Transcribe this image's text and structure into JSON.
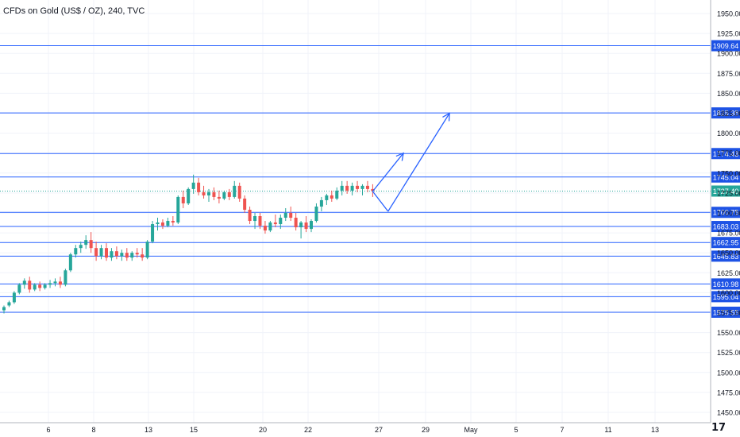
{
  "header": {
    "title": "CFDs on Gold (US$ / OZ), 240, TVC"
  },
  "brand": {
    "text": "17"
  },
  "colors": {
    "up": "#26a69a",
    "down": "#ef5350",
    "level_line": "#2962ff",
    "level_label_bg": "#1e53e5",
    "last_price_bg": "#26a69a",
    "grid": "#f0f3fa",
    "axis_text": "#131722"
  },
  "chart_data": {
    "type": "candlestick",
    "title": "CFDs on Gold (US$ / OZ), 240, TVC",
    "y_axis": {
      "range": [
        1440,
        1965
      ],
      "ticks": [
        1950,
        1925,
        1900,
        1875,
        1850,
        1825,
        1800,
        1775,
        1750,
        1725,
        1700,
        1675,
        1650,
        1625,
        1600,
        1575,
        1550,
        1525,
        1500,
        1475,
        1450
      ]
    },
    "x_axis": {
      "ticks": [
        "6",
        "8",
        "13",
        "15",
        "20",
        "22",
        "27",
        "29",
        "May",
        "5",
        "7",
        "11",
        "13"
      ]
    },
    "price_levels": [
      "1909.64",
      "1825.38",
      "1774.43",
      "1745.04",
      "1700.75",
      "1683.03",
      "1662.95",
      "1645.83",
      "1610.98",
      "1595.04",
      "1575.55"
    ],
    "last_price": "1727.40",
    "candles": [
      [
        1578,
        1584,
        1574,
        1582
      ],
      [
        1584,
        1590,
        1582,
        1588
      ],
      [
        1588,
        1602,
        1586,
        1600
      ],
      [
        1600,
        1612,
        1598,
        1610
      ],
      [
        1610,
        1618,
        1605,
        1615
      ],
      [
        1615,
        1620,
        1600,
        1604
      ],
      [
        1604,
        1612,
        1602,
        1610
      ],
      [
        1610,
        1614,
        1602,
        1606
      ],
      [
        1606,
        1612,
        1604,
        1610
      ],
      [
        1610,
        1616,
        1606,
        1612
      ],
      [
        1612,
        1618,
        1608,
        1614
      ],
      [
        1614,
        1620,
        1606,
        1610
      ],
      [
        1610,
        1630,
        1608,
        1628
      ],
      [
        1628,
        1650,
        1626,
        1648
      ],
      [
        1648,
        1660,
        1644,
        1656
      ],
      [
        1656,
        1664,
        1650,
        1660
      ],
      [
        1660,
        1672,
        1655,
        1666
      ],
      [
        1666,
        1676,
        1650,
        1656
      ],
      [
        1656,
        1664,
        1640,
        1646
      ],
      [
        1646,
        1660,
        1642,
        1656
      ],
      [
        1656,
        1662,
        1640,
        1644
      ],
      [
        1644,
        1656,
        1640,
        1652
      ],
      [
        1652,
        1658,
        1642,
        1646
      ],
      [
        1646,
        1654,
        1640,
        1650
      ],
      [
        1650,
        1656,
        1640,
        1644
      ],
      [
        1644,
        1652,
        1640,
        1650
      ],
      [
        1650,
        1656,
        1644,
        1648
      ],
      [
        1648,
        1656,
        1640,
        1644
      ],
      [
        1644,
        1666,
        1642,
        1664
      ],
      [
        1664,
        1690,
        1662,
        1686
      ],
      [
        1686,
        1694,
        1678,
        1688
      ],
      [
        1688,
        1692,
        1680,
        1684
      ],
      [
        1684,
        1694,
        1682,
        1690
      ],
      [
        1690,
        1696,
        1684,
        1688
      ],
      [
        1688,
        1722,
        1686,
        1720
      ],
      [
        1720,
        1728,
        1706,
        1712
      ],
      [
        1712,
        1732,
        1710,
        1730
      ],
      [
        1730,
        1748,
        1724,
        1738
      ],
      [
        1738,
        1744,
        1722,
        1726
      ],
      [
        1726,
        1734,
        1718,
        1722
      ],
      [
        1722,
        1730,
        1714,
        1726
      ],
      [
        1726,
        1732,
        1716,
        1720
      ],
      [
        1720,
        1728,
        1712,
        1718
      ],
      [
        1718,
        1728,
        1716,
        1726
      ],
      [
        1726,
        1730,
        1716,
        1720
      ],
      [
        1720,
        1740,
        1718,
        1734
      ],
      [
        1734,
        1738,
        1714,
        1718
      ],
      [
        1718,
        1722,
        1700,
        1704
      ],
      [
        1704,
        1708,
        1686,
        1690
      ],
      [
        1690,
        1700,
        1680,
        1696
      ],
      [
        1696,
        1700,
        1680,
        1684
      ],
      [
        1684,
        1690,
        1674,
        1678
      ],
      [
        1678,
        1690,
        1676,
        1688
      ],
      [
        1688,
        1698,
        1682,
        1686
      ],
      [
        1686,
        1698,
        1680,
        1694
      ],
      [
        1694,
        1706,
        1690,
        1700
      ],
      [
        1700,
        1708,
        1690,
        1694
      ],
      [
        1694,
        1700,
        1678,
        1682
      ],
      [
        1682,
        1690,
        1668,
        1688
      ],
      [
        1688,
        1696,
        1676,
        1680
      ],
      [
        1680,
        1692,
        1676,
        1690
      ],
      [
        1690,
        1712,
        1688,
        1708
      ],
      [
        1708,
        1720,
        1702,
        1716
      ],
      [
        1716,
        1724,
        1710,
        1722
      ],
      [
        1722,
        1728,
        1714,
        1718
      ],
      [
        1718,
        1732,
        1716,
        1728
      ],
      [
        1728,
        1740,
        1722,
        1734
      ],
      [
        1734,
        1740,
        1724,
        1728
      ],
      [
        1728,
        1738,
        1722,
        1734
      ],
      [
        1734,
        1740,
        1726,
        1730
      ],
      [
        1730,
        1736,
        1722,
        1734
      ],
      [
        1734,
        1740,
        1726,
        1730
      ],
      [
        1730,
        1736,
        1720,
        1727.4
      ]
    ],
    "projection": [
      {
        "from_index": 72,
        "from_price": 1727,
        "to_index": 78,
        "to_price": 1775,
        "arrow": true
      },
      {
        "from_index": 72,
        "from_price": 1727,
        "to_index": 75,
        "to_price": 1702,
        "arrow": false
      },
      {
        "from_index": 75,
        "from_price": 1702,
        "to_index": 87,
        "to_price": 1825,
        "arrow": true
      }
    ]
  }
}
